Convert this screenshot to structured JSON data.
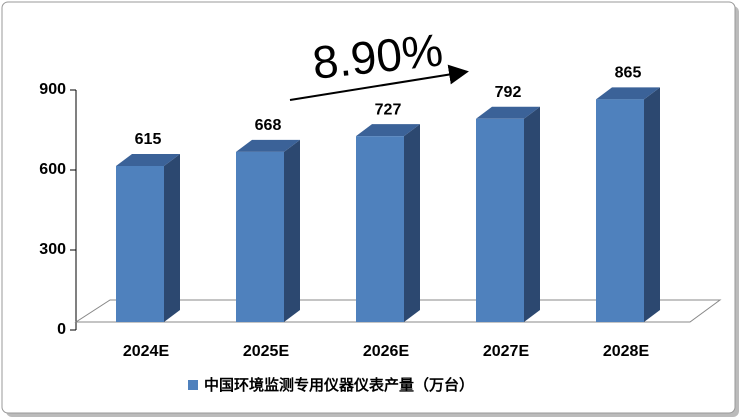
{
  "chart_data": {
    "type": "bar",
    "annotation": "8.90%",
    "categories": [
      "2024E",
      "2025E",
      "2026E",
      "2027E",
      "2028E"
    ],
    "series": [
      {
        "name": "中国环境监测专用仪器仪表产量（万台）",
        "color": "#4f81bd",
        "values": [
          615,
          668,
          727,
          792,
          865
        ]
      }
    ],
    "ylim": [
      0,
      900
    ],
    "yticks": [
      0,
      300,
      600,
      900
    ],
    "legend": "bottom"
  }
}
